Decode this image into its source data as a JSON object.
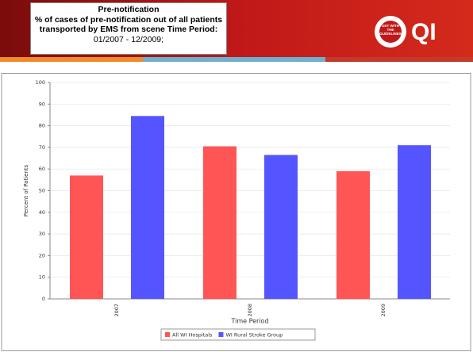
{
  "header": {
    "title": "Pre-notification",
    "subtitle": "% of cases of pre-notification out of all patients transported by EMS from scene Time Period:",
    "period": "01/2007 - 12/2009;",
    "logo_text": "GET WITH THE GUIDELINES",
    "logo_mark": "QI"
  },
  "chart_data": {
    "type": "bar",
    "x_label": "Time Period",
    "y_label": "Percent of Patients",
    "categories": [
      "2007",
      "2008",
      "2009"
    ],
    "series": [
      {
        "name": "All WI Hospitals",
        "color": "#ff5555",
        "values": [
          57,
          70.5,
          59
        ]
      },
      {
        "name": "WI Rural Stroke Group",
        "color": "#5555ff",
        "values": [
          84.5,
          66.5,
          71
        ]
      }
    ],
    "ylim": [
      0,
      100
    ],
    "yticks": [
      0,
      10,
      20,
      30,
      40,
      50,
      60,
      70,
      80,
      90,
      100
    ],
    "grid": true,
    "legend": "bottom"
  }
}
